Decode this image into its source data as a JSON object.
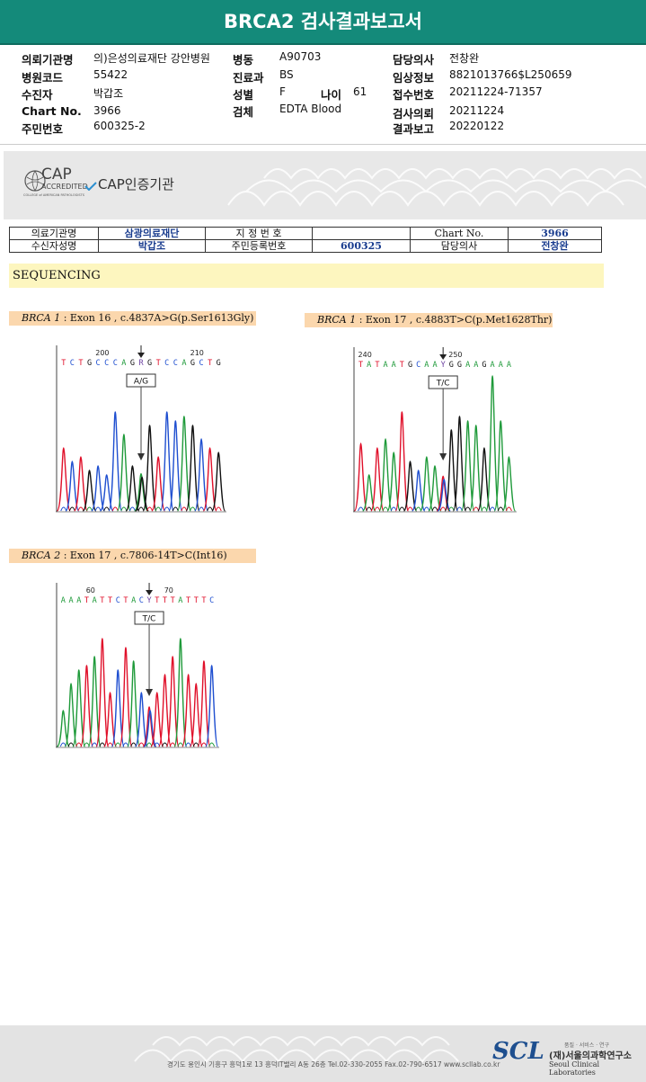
{
  "report": {
    "title": "BRCA2 검사결과보고서",
    "fields": [
      {
        "label": "의뢰기관명",
        "value": "의)은성의료재단 강안병원"
      },
      {
        "label": "병원코드",
        "value": "55422"
      },
      {
        "label": "수진자",
        "value": "박갑조"
      },
      {
        "label": "Chart No.",
        "value": "3966"
      },
      {
        "label": "주민번호",
        "value": "600325-2"
      },
      {
        "label": "병동",
        "value": "A90703"
      },
      {
        "label": "진료과",
        "value": "BS"
      },
      {
        "label": "성별",
        "value": "F"
      },
      {
        "label": "나이",
        "value": "61"
      },
      {
        "label": "검체",
        "value": "EDTA Blood"
      },
      {
        "label": "담당의사",
        "value": "전창완"
      },
      {
        "label": "임상정보",
        "value": "8821013766$L250659"
      },
      {
        "label": "접수번호",
        "value": "20211224-71357"
      },
      {
        "label": "검사의뢰",
        "value": "20211224"
      },
      {
        "label": "결과보고",
        "value": "20220122"
      }
    ]
  },
  "cap": {
    "logo_big": "CAP",
    "logo_small": "ACCREDITED",
    "logo_tiny": "COLLEGE of AMERICAN PATHOLOGISTS",
    "text": "CAP인증기관"
  },
  "patient_table": {
    "r1": [
      "의료기관명",
      "삼광의료재단",
      "지 정 번 호",
      "",
      "Chart No.",
      "3966"
    ],
    "r2": [
      "수신자성명",
      "박갑조",
      "주민등록번호",
      "600325",
      "담당의사",
      "전창완"
    ]
  },
  "section_title": "SEQUENCING",
  "variants": [
    {
      "gene": "BRCA 1",
      "text": " : Exon 16 , c.4837A>G(p.Ser1613Gly)",
      "tick_left": "200",
      "tick_right": "210",
      "bases": "TCTGCCCAGRGTCCAGCTG",
      "call": "A/G"
    },
    {
      "gene": "BRCA 1",
      "text": " : Exon 17 , c.4883T>C(p.Met1628Thr)",
      "tick_left": "240",
      "tick_right": "250",
      "bases": "TATAATGCAAYGGAAGAAA",
      "call": "T/C"
    },
    {
      "gene": "BRCA 2",
      "text": " : Exon 17 , c.7806-14T>C(Int16)",
      "tick_left": "60",
      "tick_right": "70",
      "bases": "AAATATTCTACYTTTATTTC",
      "call": "T/C"
    }
  ],
  "footer": {
    "address": "경기도 용인시 기흥구 흥덕1로 13 흥덕IT밸리 A동 26층  Tel.02-330-2055  Fax.02-790-6517  www.scllab.co.kr",
    "logo": "SCL",
    "tagline": "품질 · 서비스 · 연구",
    "name_ko": "(재)서울의과학연구소",
    "name_en": "Seoul Clinical Laboratories"
  },
  "colors": {
    "header": "#148a7a",
    "A": "#1f9a3a",
    "C": "#1f4fd0",
    "G": "#111111",
    "T": "#e0102a"
  }
}
